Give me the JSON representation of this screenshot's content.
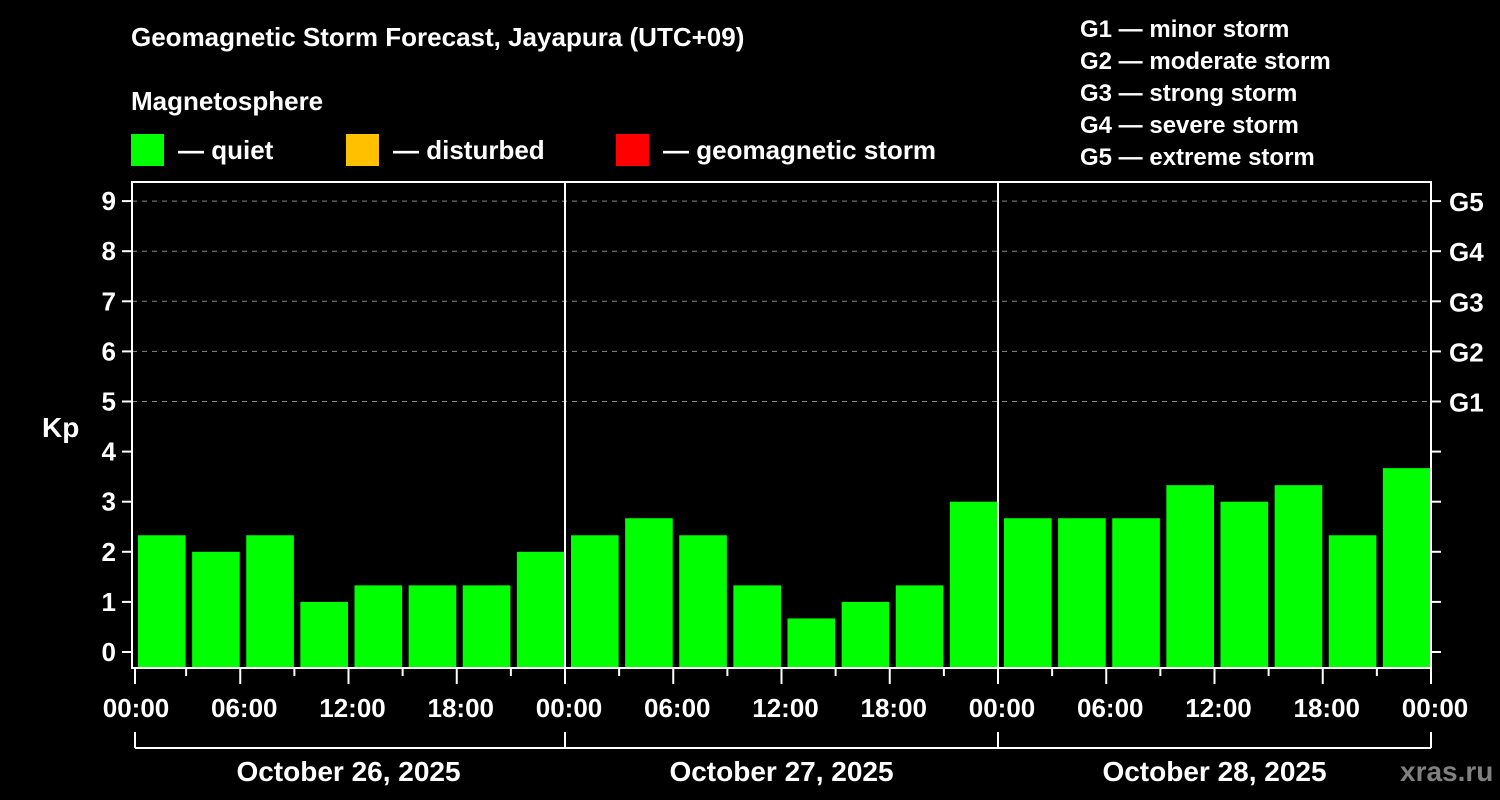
{
  "header": {
    "title": "Geomagnetic Storm Forecast, Jayapura (UTC+09)",
    "subtitle": "Magnetosphere"
  },
  "legend": {
    "items": [
      {
        "label": "— quiet",
        "color": "#00ff00"
      },
      {
        "label": "— disturbed",
        "color": "#ffc000"
      },
      {
        "label": "— geomagnetic storm",
        "color": "#ff0000"
      }
    ]
  },
  "g_scale_legend": [
    "G1 — minor storm",
    "G2 — moderate storm",
    "G3 — strong storm",
    "G4 — severe storm",
    "G5 — extreme storm"
  ],
  "watermark": "xras.ru",
  "chart_data": {
    "type": "bar",
    "title": "Geomagnetic Storm Forecast, Jayapura (UTC+09)",
    "subtitle": "Magnetosphere",
    "xlabel": "",
    "ylabel": "Kp",
    "ylim": [
      0,
      9
    ],
    "yticks": [
      0,
      1,
      2,
      3,
      4,
      5,
      6,
      7,
      8,
      9
    ],
    "right_axis_labels": [
      {
        "kp": 5,
        "label": "G1"
      },
      {
        "kp": 6,
        "label": "G2"
      },
      {
        "kp": 7,
        "label": "G3"
      },
      {
        "kp": 8,
        "label": "G4"
      },
      {
        "kp": 9,
        "label": "G5"
      }
    ],
    "grid": "dashed horizontal at Kp 5–9",
    "x_tick_labels": [
      "00:00",
      "06:00",
      "12:00",
      "18:00",
      "00:00",
      "06:00",
      "12:00",
      "18:00",
      "00:00",
      "06:00",
      "12:00",
      "18:00",
      "00:00"
    ],
    "days": [
      "October 26, 2025",
      "October 27, 2025",
      "October 28, 2025"
    ],
    "interval_hours": 3,
    "categories": [
      "Oct 26 00-03",
      "Oct 26 03-06",
      "Oct 26 06-09",
      "Oct 26 09-12",
      "Oct 26 12-15",
      "Oct 26 15-18",
      "Oct 26 18-21",
      "Oct 26 21-24",
      "Oct 27 00-03",
      "Oct 27 03-06",
      "Oct 27 06-09",
      "Oct 27 09-12",
      "Oct 27 12-15",
      "Oct 27 15-18",
      "Oct 27 18-21",
      "Oct 27 21-24",
      "Oct 28 00-03",
      "Oct 28 03-06",
      "Oct 28 06-09",
      "Oct 28 09-12",
      "Oct 28 12-15",
      "Oct 28 15-18",
      "Oct 28 18-21",
      "Oct 28 21-24"
    ],
    "values": [
      2.33,
      2.0,
      2.33,
      1.0,
      1.33,
      1.33,
      1.33,
      2.0,
      2.33,
      2.67,
      2.33,
      1.33,
      0.67,
      1.0,
      1.33,
      3.0,
      2.67,
      2.67,
      2.67,
      3.33,
      3.0,
      3.33,
      2.33,
      3.67
    ],
    "status": [
      "quiet",
      "quiet",
      "quiet",
      "quiet",
      "quiet",
      "quiet",
      "quiet",
      "quiet",
      "quiet",
      "quiet",
      "quiet",
      "quiet",
      "quiet",
      "quiet",
      "quiet",
      "quiet",
      "quiet",
      "quiet",
      "quiet",
      "quiet",
      "quiet",
      "quiet",
      "quiet",
      "quiet"
    ],
    "colors": {
      "quiet": "#00ff00",
      "disturbed": "#ffc000",
      "storm": "#ff0000"
    },
    "legend_position": "top"
  }
}
